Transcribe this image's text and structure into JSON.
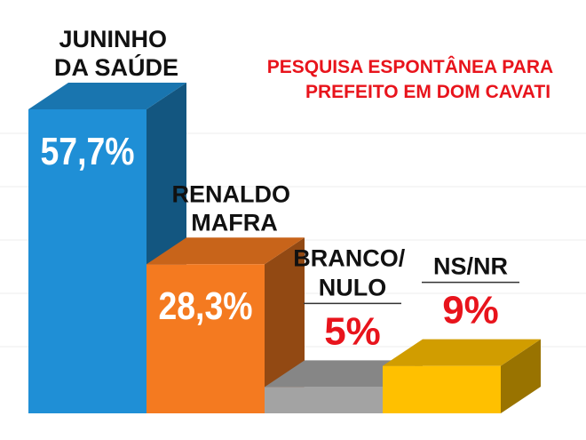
{
  "chart_data": {
    "type": "bar3d",
    "title": [
      "PESQUISA ESPONTÂNEA PARA",
      "PREFEITO EM DOM CAVATI"
    ],
    "categories": [
      "JUNINHO DA SAÚDE",
      "RENALDO MAFRA",
      "BRANCO/ NULO",
      "NS/NR"
    ],
    "values": [
      57.7,
      28.3,
      5,
      9
    ],
    "value_labels": [
      "57,7%",
      "28,3%",
      "5%",
      "9%"
    ],
    "colors": [
      "#1f8fd6",
      "#f47a20",
      "#a3a3a3",
      "#ffc000"
    ]
  }
}
